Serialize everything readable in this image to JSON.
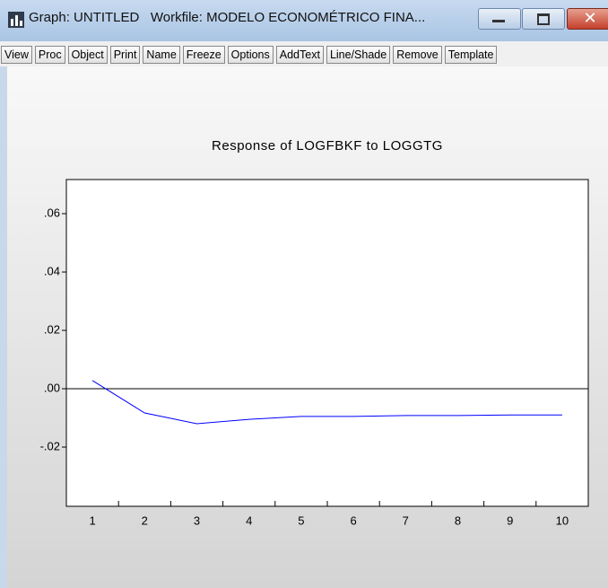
{
  "window": {
    "title": "Graph: UNTITLED   Workfile: MODELO ECONOMÉTRICO FINA..."
  },
  "toolbar": {
    "buttons": [
      "View",
      "Proc",
      "Object",
      "Print",
      "Name",
      "Freeze",
      "Options",
      "AddText",
      "Line/Shade",
      "Remove",
      "Template"
    ]
  },
  "chart_data": {
    "type": "line",
    "title": "Response of LOGFBKF to LOGGTG",
    "categories": [
      "1",
      "2",
      "3",
      "4",
      "5",
      "6",
      "7",
      "8",
      "9",
      "10"
    ],
    "series": [
      {
        "name": "LOGFBKF",
        "color": "#0000ff",
        "values": [
          0.0028,
          -0.0083,
          -0.012,
          -0.0105,
          -0.0095,
          -0.0095,
          -0.0092,
          -0.0092,
          -0.009,
          -0.009
        ]
      }
    ],
    "ylim": [
      -0.0403,
      0.0717
    ],
    "yticks": [
      {
        "value": -0.02,
        "label": "-.02"
      },
      {
        "value": 0,
        "label": ".00"
      },
      {
        "value": 0.02,
        "label": ".02"
      },
      {
        "value": 0.04,
        "label": ".04"
      },
      {
        "value": 0.06,
        "label": ".06"
      }
    ],
    "zero_line": true
  }
}
